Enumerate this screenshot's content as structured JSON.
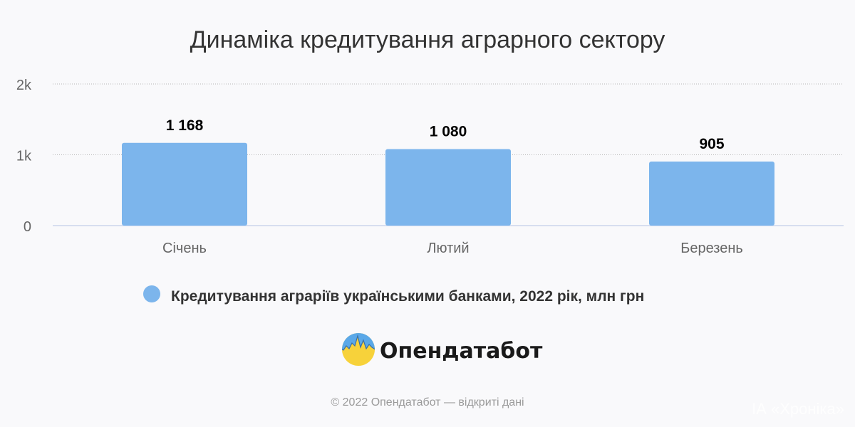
{
  "chart_data": {
    "type": "bar",
    "title": "Динаміка кредитування аграрного сектору",
    "categories": [
      "Січень",
      "Лютий",
      "Березень"
    ],
    "series": [
      {
        "name": "Кредитування аграріїв українськими банками, 2022 рік, млн грн",
        "values": [
          1168,
          1080,
          905
        ],
        "value_labels": [
          "1 168",
          "1 080",
          "905"
        ]
      }
    ],
    "y_ticks": [
      {
        "value": 0,
        "label": "0"
      },
      {
        "value": 1000,
        "label": "1k"
      },
      {
        "value": 2000,
        "label": "2k"
      }
    ],
    "ylim": [
      0,
      2000
    ],
    "grid": true,
    "legend_position": "bottom-center",
    "colors": {
      "bar": "#7cb5ec",
      "grid": "#b7b7b7",
      "axis": "#ccd6eb"
    }
  },
  "logo": {
    "text": "Опендатабот"
  },
  "footer": {
    "credit": "© 2022 Опендатабот — відкриті дані"
  },
  "watermark": "ІА «Хроніка»"
}
